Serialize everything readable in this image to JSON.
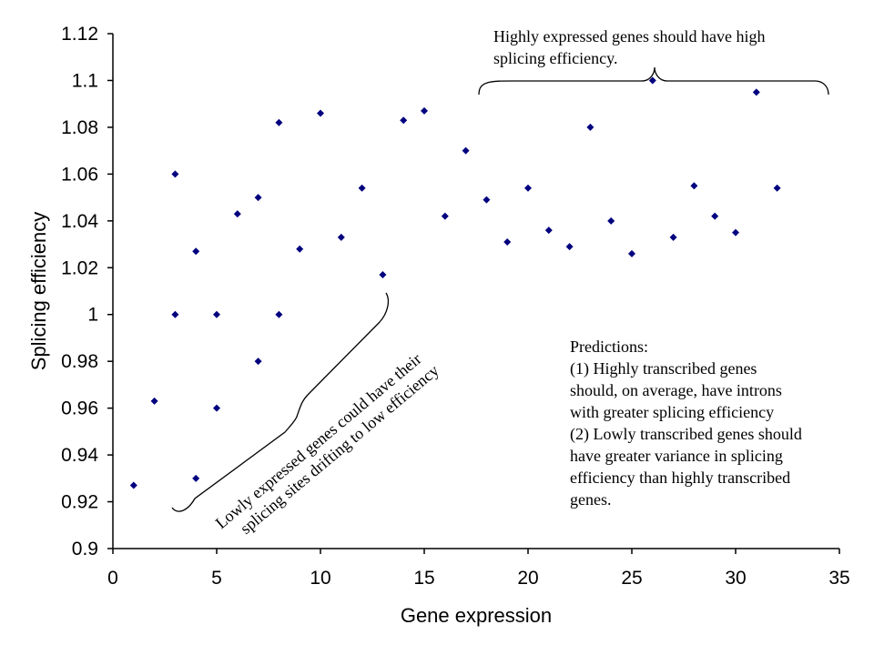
{
  "chart_data": {
    "type": "scatter",
    "xlabel": "Gene expression",
    "ylabel": "Splicing efficiency",
    "xlim": [
      0,
      35
    ],
    "ylim": [
      0.9,
      1.12
    ],
    "xticks": [
      0,
      5,
      10,
      15,
      20,
      25,
      30,
      35
    ],
    "yticks": [
      0.9,
      0.92,
      0.94,
      0.96,
      0.98,
      1,
      1.02,
      1.04,
      1.06,
      1.08,
      1.1,
      1.12
    ],
    "grid": false,
    "marker_color": "#00007f",
    "points": [
      {
        "x": 1,
        "y": 0.927
      },
      {
        "x": 2,
        "y": 0.963
      },
      {
        "x": 3,
        "y": 1.06
      },
      {
        "x": 3,
        "y": 1.0
      },
      {
        "x": 4,
        "y": 1.027
      },
      {
        "x": 4,
        "y": 0.93
      },
      {
        "x": 5,
        "y": 1.0
      },
      {
        "x": 5,
        "y": 0.96
      },
      {
        "x": 6,
        "y": 1.043
      },
      {
        "x": 7,
        "y": 1.05
      },
      {
        "x": 7,
        "y": 0.98
      },
      {
        "x": 8,
        "y": 1.082
      },
      {
        "x": 8,
        "y": 1.0
      },
      {
        "x": 9,
        "y": 1.028
      },
      {
        "x": 10,
        "y": 1.086
      },
      {
        "x": 11,
        "y": 1.033
      },
      {
        "x": 12,
        "y": 1.054
      },
      {
        "x": 13,
        "y": 1.017
      },
      {
        "x": 14,
        "y": 1.083
      },
      {
        "x": 15,
        "y": 1.087
      },
      {
        "x": 16,
        "y": 1.042
      },
      {
        "x": 17,
        "y": 1.07
      },
      {
        "x": 18,
        "y": 1.049
      },
      {
        "x": 19,
        "y": 1.031
      },
      {
        "x": 20,
        "y": 1.054
      },
      {
        "x": 21,
        "y": 1.036
      },
      {
        "x": 22,
        "y": 1.029
      },
      {
        "x": 23,
        "y": 1.08
      },
      {
        "x": 24,
        "y": 1.04
      },
      {
        "x": 25,
        "y": 1.026
      },
      {
        "x": 26,
        "y": 1.1
      },
      {
        "x": 27,
        "y": 1.033
      },
      {
        "x": 28,
        "y": 1.055
      },
      {
        "x": 29,
        "y": 1.042
      },
      {
        "x": 30,
        "y": 1.035
      },
      {
        "x": 31,
        "y": 1.095
      },
      {
        "x": 32,
        "y": 1.054
      }
    ],
    "annotations": {
      "high": "Highly expressed genes should have high splicing efficiency.",
      "low": "Lowly expressed genes could have their splicing sites drifting to low efficiency"
    }
  },
  "annotation_high": {
    "line1": "Highly expressed genes should have high",
    "line2": "splicing efficiency."
  },
  "annotation_low": {
    "line1": "Lowly expressed genes could have their",
    "line2": "splicing sites drifting to low efficiency"
  },
  "predictions": {
    "heading": "Predictions:",
    "lines": [
      "(1) Highly transcribed genes",
      "should, on average, have introns",
      "with greater splicing efficiency",
      "(2) Lowly transcribed genes should",
      "have greater variance in splicing",
      "efficiency than highly transcribed",
      "genes."
    ]
  }
}
